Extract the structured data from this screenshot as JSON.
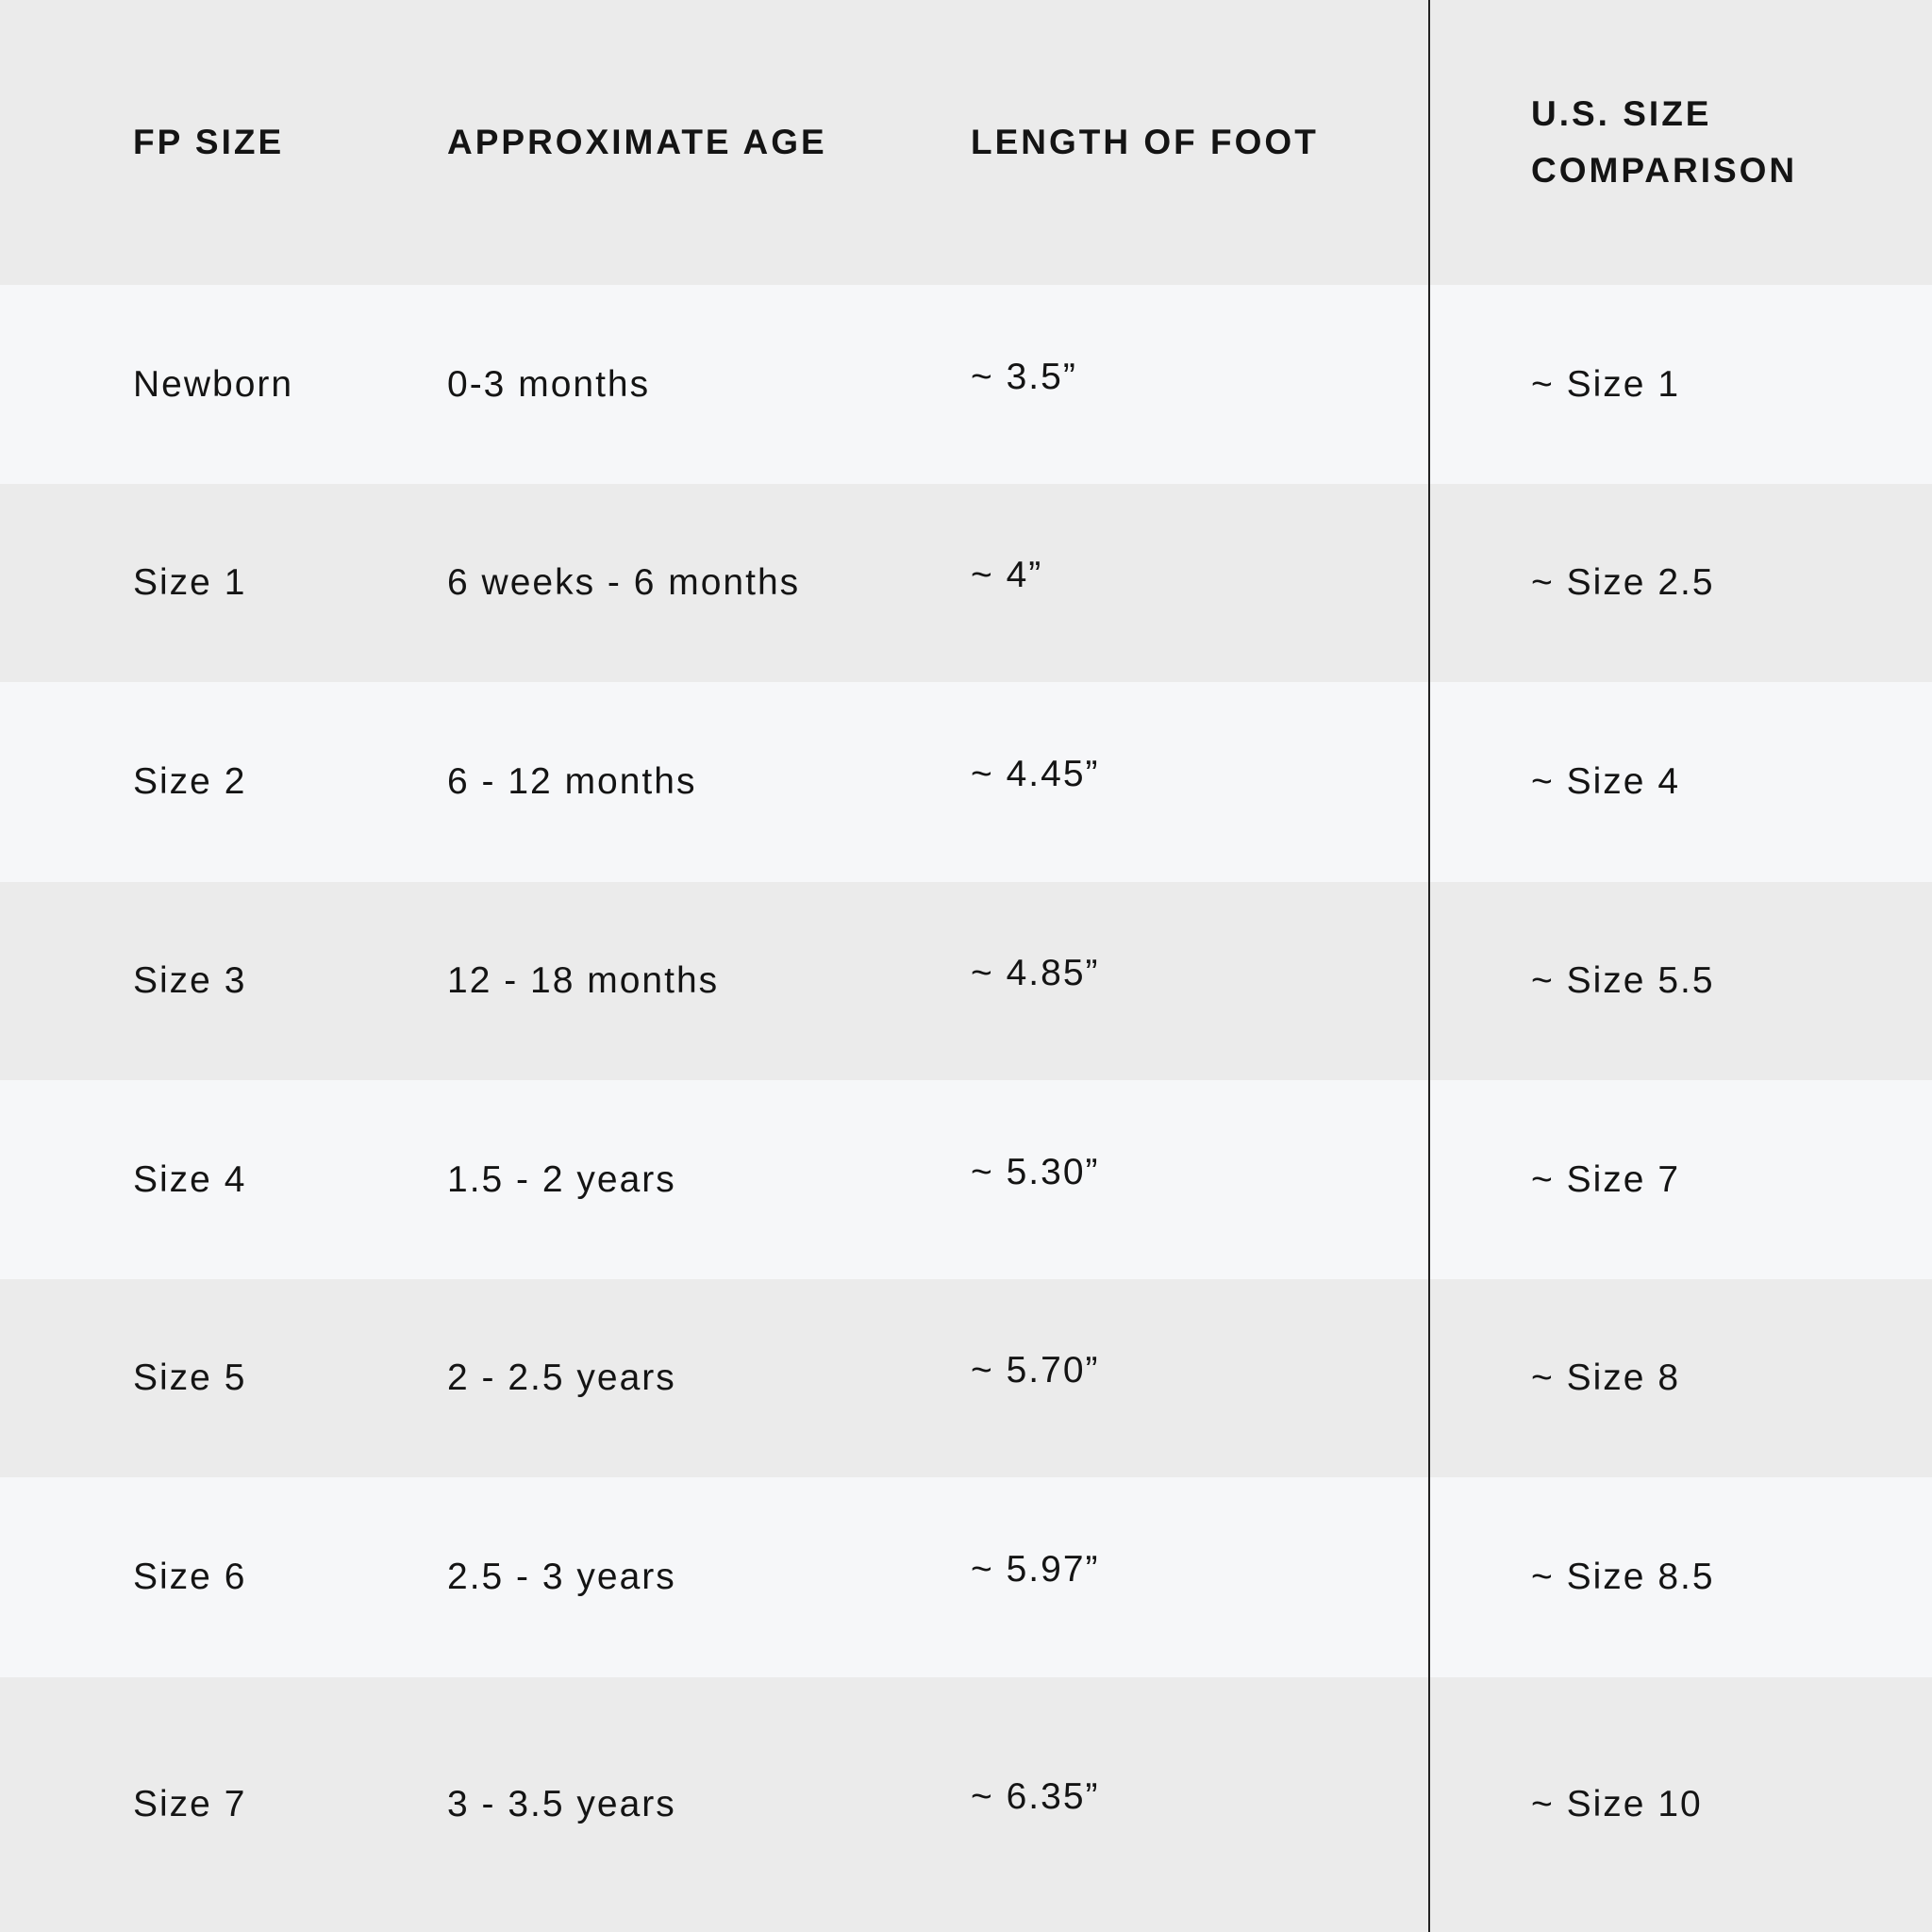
{
  "colors": {
    "header_bg": "#ebebeb",
    "row_light": "#f6f7f9",
    "row_dark": "#ebebeb",
    "text": "#141414",
    "divider": "#222222"
  },
  "headers": [
    "FP SIZE",
    "APPROXIMATE AGE",
    "LENGTH OF FOOT",
    "U.S. SIZE COMPARISON"
  ],
  "header_us_lines": [
    "U.S. SIZE",
    "COMPARISON"
  ],
  "rows": [
    [
      "Newborn",
      "0-3 months",
      "~ 3.5”",
      "~ Size 1"
    ],
    [
      "Size 1",
      "6 weeks - 6 months",
      "~ 4”",
      "~ Size 2.5"
    ],
    [
      "Size 2",
      "6 - 12 months",
      "~ 4.45”",
      "~ Size 4"
    ],
    [
      "Size 3",
      "12 - 18 months",
      "~ 4.85”",
      "~ Size 5.5"
    ],
    [
      "Size 4",
      "1.5 - 2 years",
      "~ 5.30”",
      "~ Size 7"
    ],
    [
      "Size 5",
      "2 - 2.5 years",
      "~ 5.70”",
      "~ Size 8"
    ],
    [
      "Size 6",
      "2.5 - 3 years",
      "~ 5.97”",
      "~ Size 8.5"
    ],
    [
      "Size 7",
      "3 - 3.5 years",
      "~ 6.35”",
      "~ Size 10"
    ]
  ]
}
